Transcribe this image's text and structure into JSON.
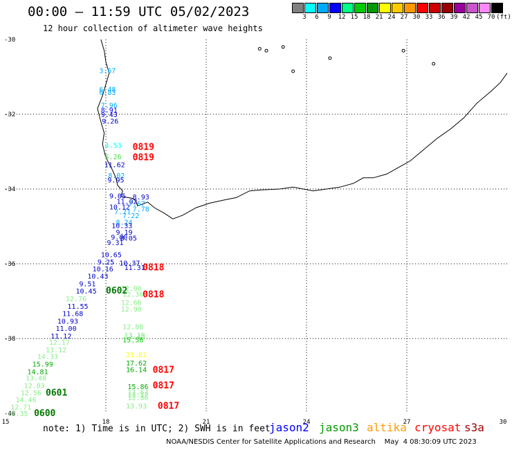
{
  "header": {
    "title": "00:00 – 11:59 UTC 05/02/2023",
    "subtitle": "12 hour collection of altimeter wave heights"
  },
  "legend": {
    "colors": [
      "#808080",
      "#00ffff",
      "#00aaff",
      "#0000ff",
      "#00ff88",
      "#00cc00",
      "#009900",
      "#ffff00",
      "#ffcc00",
      "#ff9900",
      "#ff0000",
      "#cc0000",
      "#990000",
      "#990099",
      "#cc55cc",
      "#ff88ff",
      "#000000"
    ],
    "labels": [
      "3",
      "6",
      "9",
      "12",
      "15",
      "18",
      "21",
      "24",
      "27",
      "30",
      "33",
      "36",
      "39",
      "42",
      "45",
      "70",
      "(ft)"
    ]
  },
  "axes": {
    "lat_labels": [
      "-30",
      "-32",
      "-34",
      "-36",
      "-38",
      "-40"
    ],
    "lon_labels": [
      "15",
      "18",
      "21",
      "24",
      "27",
      "30"
    ]
  },
  "observations": [
    {
      "text": "3.67",
      "lon": 17.8,
      "lat": -30.9,
      "color": "#00aaff"
    },
    {
      "text": "6.48",
      "lon": 17.8,
      "lat": -31.4,
      "color": "#00aaff"
    },
    {
      "text": "6.83",
      "lon": 17.8,
      "lat": -31.48,
      "color": "#00aaff"
    },
    {
      "text": "7.96",
      "lon": 17.85,
      "lat": -31.82,
      "color": "#00aaff"
    },
    {
      "text": "8.91",
      "lon": 17.85,
      "lat": -31.95,
      "color": "#0000ff"
    },
    {
      "text": "9.43",
      "lon": 17.85,
      "lat": -32.07,
      "color": "#0000cc"
    },
    {
      "text": "9.26",
      "lon": 17.88,
      "lat": -32.25,
      "color": "#0000cc"
    },
    {
      "text": "4.53",
      "lon": 17.97,
      "lat": -32.9,
      "color": "#00ffff"
    },
    {
      "text": "5.26",
      "lon": 17.97,
      "lat": -33.2,
      "color": "#44dd44"
    },
    {
      "text": "11.62",
      "lon": 17.95,
      "lat": -33.42,
      "color": "#0000cc"
    },
    {
      "text": "8.02",
      "lon": 18.07,
      "lat": -33.7,
      "color": "#00aaff"
    },
    {
      "text": "9.95",
      "lon": 18.05,
      "lat": -33.82,
      "color": "#0000cc"
    },
    {
      "text": "9.05",
      "lon": 18.1,
      "lat": -34.25,
      "color": "#0000cc"
    },
    {
      "text": "8.93",
      "lon": 18.8,
      "lat": -34.28,
      "color": "#0000cc"
    },
    {
      "text": "11.02",
      "lon": 18.32,
      "lat": -34.4,
      "color": "#0000cc"
    },
    {
      "text": "7.67",
      "lon": 18.68,
      "lat": -34.45,
      "color": "#00aaff"
    },
    {
      "text": "10.12",
      "lon": 18.1,
      "lat": -34.55,
      "color": "#0000cc"
    },
    {
      "text": "7.78",
      "lon": 18.8,
      "lat": -34.6,
      "color": "#00aaff"
    },
    {
      "text": "7.71",
      "lon": 18.25,
      "lat": -34.68,
      "color": "#00aaff"
    },
    {
      "text": "7.22",
      "lon": 18.5,
      "lat": -34.78,
      "color": "#00aaff"
    },
    {
      "text": "8.24",
      "lon": 18.3,
      "lat": -34.95,
      "color": "#00aaff"
    },
    {
      "text": "10.33",
      "lon": 18.17,
      "lat": -35.05,
      "color": "#0000cc"
    },
    {
      "text": "9.19",
      "lon": 18.3,
      "lat": -35.22,
      "color": "#0000cc"
    },
    {
      "text": "9.00",
      "lon": 18.15,
      "lat": -35.35,
      "color": "#0000cc"
    },
    {
      "text": "8.05",
      "lon": 18.43,
      "lat": -35.38,
      "color": "#0000cc"
    },
    {
      "text": "9.31",
      "lon": 18.03,
      "lat": -35.5,
      "color": "#0000cc"
    },
    {
      "text": "10.65",
      "lon": 17.85,
      "lat": -35.82,
      "color": "#0000cc"
    },
    {
      "text": "9.25",
      "lon": 17.75,
      "lat": -36.02,
      "color": "#0000cc"
    },
    {
      "text": "10.37",
      "lon": 18.4,
      "lat": -36.05,
      "color": "#0000cc"
    },
    {
      "text": "11.31",
      "lon": 18.55,
      "lat": -36.17,
      "color": "#0000cc"
    },
    {
      "text": "10.16",
      "lon": 17.6,
      "lat": -36.2,
      "color": "#0000cc"
    },
    {
      "text": "10.43",
      "lon": 17.45,
      "lat": -36.4,
      "color": "#0000cc"
    },
    {
      "text": "9.51",
      "lon": 17.2,
      "lat": -36.6,
      "color": "#0000cc"
    },
    {
      "text": "12.06",
      "lon": 18.45,
      "lat": -36.72,
      "color": "#88ee88"
    },
    {
      "text": "10.45",
      "lon": 17.1,
      "lat": -36.8,
      "color": "#0000cc"
    },
    {
      "text": "12.30",
      "lon": 18.5,
      "lat": -36.88,
      "color": "#88ee88"
    },
    {
      "text": "12.76",
      "lon": 16.8,
      "lat": -37.0,
      "color": "#88ee88"
    },
    {
      "text": "12.66",
      "lon": 18.45,
      "lat": -37.1,
      "color": "#88ee88"
    },
    {
      "text": "11.55",
      "lon": 16.85,
      "lat": -37.2,
      "color": "#0000cc"
    },
    {
      "text": "12.90",
      "lon": 18.45,
      "lat": -37.28,
      "color": "#88ee88"
    },
    {
      "text": "11.68",
      "lon": 16.7,
      "lat": -37.4,
      "color": "#0000cc"
    },
    {
      "text": "10.93",
      "lon": 16.55,
      "lat": -37.6,
      "color": "#0000cc"
    },
    {
      "text": "12.88",
      "lon": 18.5,
      "lat": -37.75,
      "color": "#88ee88"
    },
    {
      "text": "11.00",
      "lon": 16.5,
      "lat": -37.8,
      "color": "#0000cc"
    },
    {
      "text": "13.19",
      "lon": 18.55,
      "lat": -37.97,
      "color": "#88ee88"
    },
    {
      "text": "13.49",
      "lon": 18.55,
      "lat": -38.02,
      "color": "#88ee88"
    },
    {
      "text": "11.12",
      "lon": 16.35,
      "lat": -38.0,
      "color": "#0000cc"
    },
    {
      "text": "15.56",
      "lon": 18.5,
      "lat": -38.1,
      "color": "#00cc00"
    },
    {
      "text": "12.17",
      "lon": 16.3,
      "lat": -38.17,
      "color": "#88ee88"
    },
    {
      "text": "13.12",
      "lon": 16.2,
      "lat": -38.37,
      "color": "#88ee88"
    },
    {
      "text": "21.82",
      "lon": 18.6,
      "lat": -38.5,
      "color": "#ffff00"
    },
    {
      "text": "14.33",
      "lon": 15.95,
      "lat": -38.55,
      "color": "#88ee88"
    },
    {
      "text": "17.62",
      "lon": 18.6,
      "lat": -38.72,
      "color": "#00aa00"
    },
    {
      "text": "15.99",
      "lon": 15.8,
      "lat": -38.75,
      "color": "#00aa00"
    },
    {
      "text": "16.14",
      "lon": 18.6,
      "lat": -38.9,
      "color": "#00aa00"
    },
    {
      "text": "14.81",
      "lon": 15.65,
      "lat": -38.95,
      "color": "#00aa00"
    },
    {
      "text": "13.48",
      "lon": 15.6,
      "lat": -39.12,
      "color": "#88ee88"
    },
    {
      "text": "12.83",
      "lon": 15.55,
      "lat": -39.32,
      "color": "#88ee88"
    },
    {
      "text": "15.86",
      "lon": 18.65,
      "lat": -39.35,
      "color": "#00aa00"
    },
    {
      "text": "12.56",
      "lon": 15.45,
      "lat": -39.52,
      "color": "#88ee88"
    },
    {
      "text": "13.63",
      "lon": 18.65,
      "lat": -39.5,
      "color": "#88ee88"
    },
    {
      "text": "13.12",
      "lon": 18.65,
      "lat": -39.57,
      "color": "#88ee88"
    },
    {
      "text": "12.86",
      "lon": 18.65,
      "lat": -39.65,
      "color": "#88ee88"
    },
    {
      "text": "14.46",
      "lon": 15.3,
      "lat": -39.7,
      "color": "#88ee88"
    },
    {
      "text": "12.71",
      "lon": 15.15,
      "lat": -39.9,
      "color": "#88ee88"
    },
    {
      "text": "13.93",
      "lon": 18.6,
      "lat": -39.87,
      "color": "#88ee88"
    },
    {
      "text": "12.35",
      "lon": 15.05,
      "lat": -40.07,
      "color": "#88ee88"
    }
  ],
  "passes": [
    {
      "text": "0819",
      "lon": 18.8,
      "lat": -32.95,
      "color": "#ff0000"
    },
    {
      "text": "0819",
      "lon": 18.8,
      "lat": -33.23,
      "color": "#ff0000"
    },
    {
      "text": "0818",
      "lon": 19.1,
      "lat": -36.18,
      "color": "#ff0000"
    },
    {
      "text": "0602",
      "lon": 18.0,
      "lat": -36.8,
      "color": "#007700"
    },
    {
      "text": "0818",
      "lon": 19.1,
      "lat": -36.9,
      "color": "#ff0000"
    },
    {
      "text": "0817",
      "lon": 19.4,
      "lat": -38.92,
      "color": "#ff0000"
    },
    {
      "text": "0817",
      "lon": 19.4,
      "lat": -39.33,
      "color": "#ff0000"
    },
    {
      "text": "0601",
      "lon": 16.2,
      "lat": -39.53,
      "color": "#007700"
    },
    {
      "text": "0817",
      "lon": 19.55,
      "lat": -39.88,
      "color": "#ff0000"
    },
    {
      "text": "0600",
      "lon": 15.85,
      "lat": -40.07,
      "color": "#007700"
    }
  ],
  "footer": {
    "note": "note: 1) Time is in UTC; 2) SWH is in feet",
    "satellites": [
      {
        "name": "jason2",
        "color": "#0000ff"
      },
      {
        "name": "jason3",
        "color": "#009900"
      },
      {
        "name": "altika",
        "color": "#ff9900"
      },
      {
        "name": "cryosat",
        "color": "#ff0000"
      },
      {
        "name": "s3a",
        "color": "#990000"
      }
    ],
    "credit": "NOAA/NESDIS Center for Satellite Applications and Research    May  4 08:30:09 UTC 2023"
  }
}
